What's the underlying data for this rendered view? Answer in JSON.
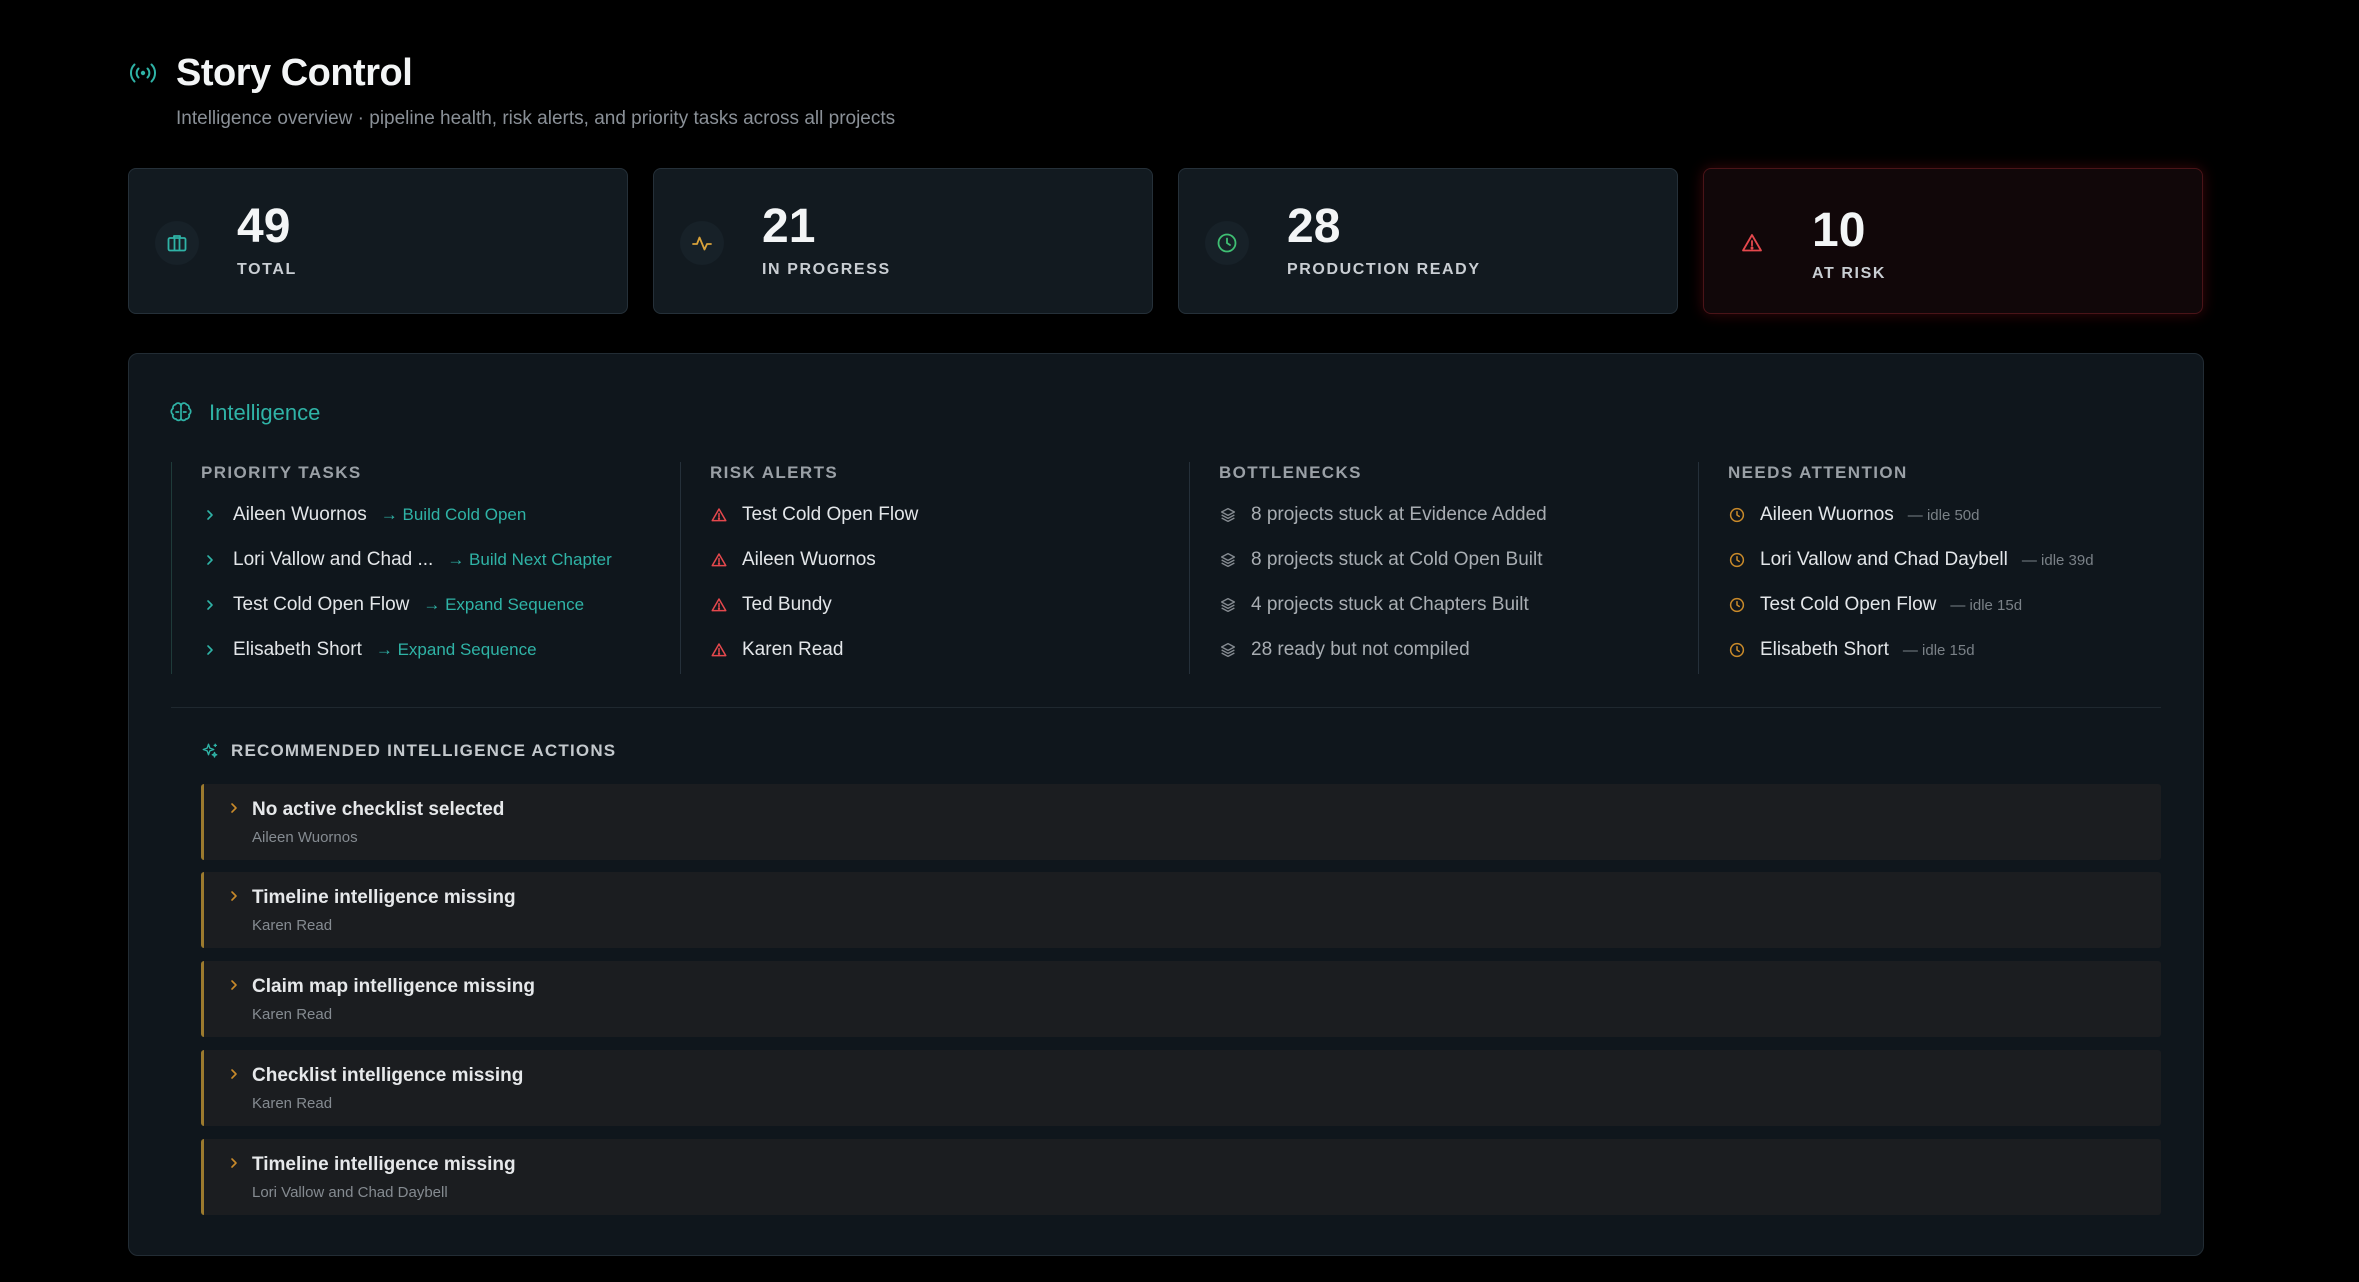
{
  "header": {
    "title": "Story Control",
    "subtitle": "Intelligence overview · pipeline health, risk alerts, and priority tasks across all projects",
    "icon": "broadcast-icon"
  },
  "stats": [
    {
      "value": "49",
      "label": "TOTAL",
      "icon": "briefcase-icon",
      "color": "#2fb3a6"
    },
    {
      "value": "21",
      "label": "IN PROGRESS",
      "icon": "activity-icon",
      "color": "#d9a23a"
    },
    {
      "value": "28",
      "label": "PRODUCTION READY",
      "icon": "clock-icon",
      "color": "#3fbf73"
    },
    {
      "value": "10",
      "label": "AT RISK",
      "icon": "alert-triangle-icon",
      "color": "#e5484d"
    }
  ],
  "intelligence": {
    "title": "Intelligence",
    "icon": "brain-icon",
    "priority_tasks": {
      "title": "PRIORITY TASKS",
      "items": [
        {
          "name": "Aileen Wuornos",
          "action": "→ Build Cold Open"
        },
        {
          "name": "Lori Vallow and Chad ...",
          "action": "→ Build Next Chapter"
        },
        {
          "name": "Test Cold Open Flow",
          "action": "→ Expand Sequence"
        },
        {
          "name": "Elisabeth Short",
          "action": "→ Expand Sequence"
        }
      ]
    },
    "risk_alerts": {
      "title": "RISK ALERTS",
      "items": [
        "Test Cold Open Flow",
        "Aileen Wuornos",
        "Ted Bundy",
        "Karen Read"
      ]
    },
    "bottlenecks": {
      "title": "BOTTLENECKS",
      "items": [
        "8 projects stuck at Evidence Added",
        "8 projects stuck at Cold Open Built",
        "4 projects stuck at Chapters Built",
        "28 ready but not compiled"
      ]
    },
    "needs_attention": {
      "title": "NEEDS ATTENTION",
      "items": [
        {
          "name": "Aileen Wuornos",
          "idle": "— idle 50d"
        },
        {
          "name": "Lori Vallow and Chad Daybell",
          "idle": "— idle 39d"
        },
        {
          "name": "Test Cold Open Flow",
          "idle": "— idle 15d"
        },
        {
          "name": "Elisabeth Short",
          "idle": "— idle 15d"
        }
      ]
    }
  },
  "recommended": {
    "title": "RECOMMENDED INTELLIGENCE ACTIONS",
    "icon": "sparkle-icon",
    "items": [
      {
        "title": "No active checklist selected",
        "project": "Aileen Wuornos"
      },
      {
        "title": "Timeline intelligence missing",
        "project": "Karen Read"
      },
      {
        "title": "Claim map intelligence missing",
        "project": "Karen Read"
      },
      {
        "title": "Checklist intelligence missing",
        "project": "Karen Read"
      },
      {
        "title": "Timeline intelligence missing",
        "project": "Lori Vallow and Chad Daybell"
      }
    ]
  }
}
